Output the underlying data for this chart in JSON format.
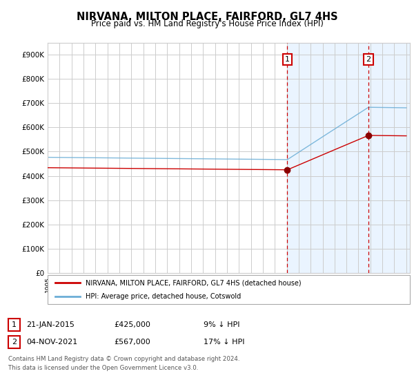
{
  "title": "NIRVANA, MILTON PLACE, FAIRFORD, GL7 4HS",
  "subtitle": "Price paid vs. HM Land Registry's House Price Index (HPI)",
  "ylabel_ticks": [
    "£0",
    "£100K",
    "£200K",
    "£300K",
    "£400K",
    "£500K",
    "£600K",
    "£700K",
    "£800K",
    "£900K"
  ],
  "ytick_values": [
    0,
    100000,
    200000,
    300000,
    400000,
    500000,
    600000,
    700000,
    800000,
    900000
  ],
  "ylim": [
    0,
    950000
  ],
  "xlim_start": 1995.0,
  "xlim_end": 2025.3,
  "hpi_color": "#6baed6",
  "hpi_color_light": "#c6dbef",
  "price_color": "#cc0000",
  "marker1_x": 2015.05,
  "marker1_y": 425000,
  "marker1_label": "1",
  "marker2_x": 2021.84,
  "marker2_y": 567000,
  "marker2_label": "2",
  "legend_line1": "NIRVANA, MILTON PLACE, FAIRFORD, GL7 4HS (detached house)",
  "legend_line2": "HPI: Average price, detached house, Cotswold",
  "footer": "Contains HM Land Registry data © Crown copyright and database right 2024.\nThis data is licensed under the Open Government Licence v3.0.",
  "bg_color": "#ffffff",
  "shaded_start": 2015.0,
  "shaded_end": 2025.3,
  "shaded_color": "#ddeeff",
  "grid_color": "#cccccc"
}
